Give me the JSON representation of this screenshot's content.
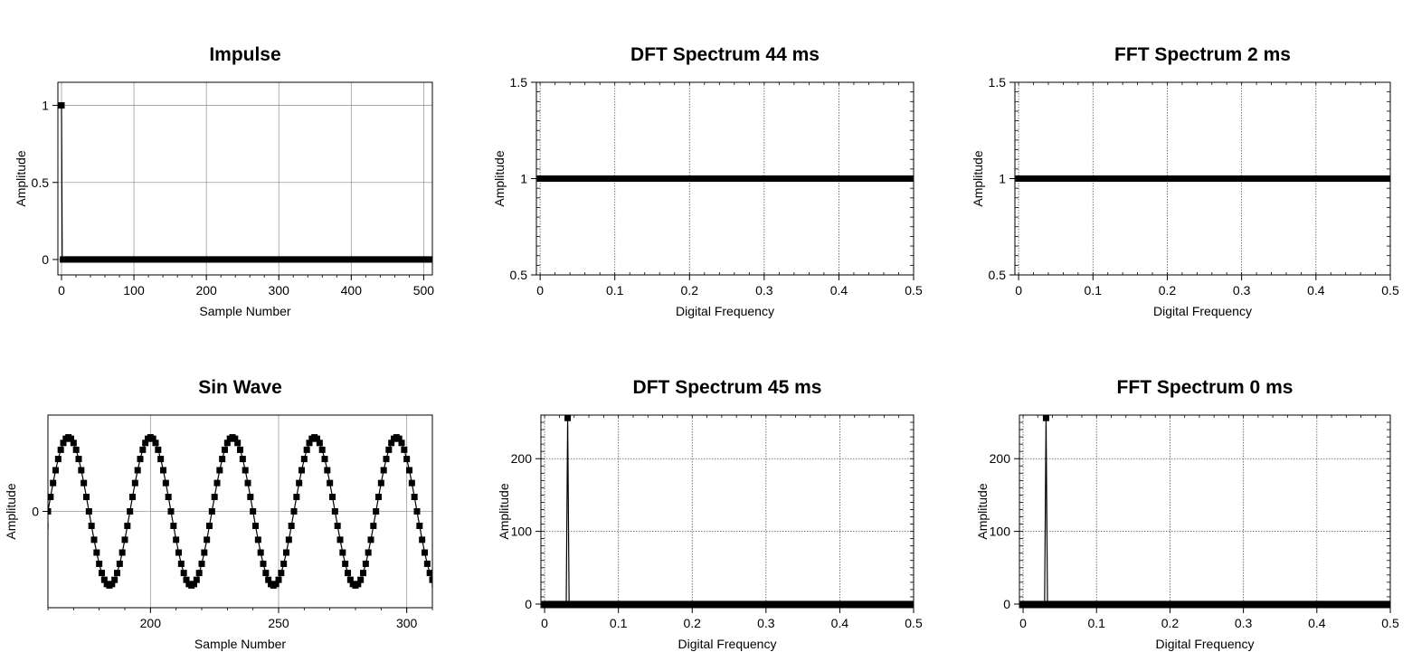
{
  "chart_data": [
    {
      "type": "scatter",
      "title": "Impulse",
      "xlabel": "Sample Number",
      "ylabel": "Amplitude",
      "xlim": [
        -5,
        512
      ],
      "ylim": [
        -0.1,
        1.15
      ],
      "xticks": [
        0,
        100,
        200,
        300,
        400,
        500
      ],
      "yticks": [
        0,
        0.5,
        1
      ],
      "xtick_labels": [
        "0",
        "100",
        "200",
        "300",
        "400",
        "500"
      ],
      "ytick_labels": [
        "0",
        "0.5",
        "1"
      ],
      "grid": "solid",
      "series": [
        {
          "kind": "impulse",
          "n": 512,
          "marker_step": 2
        }
      ]
    },
    {
      "type": "line",
      "title": "DFT Spectrum 44 ms",
      "xlabel": "Digital Frequency",
      "ylabel": "Amplitude",
      "xlim": [
        -0.005,
        0.5
      ],
      "ylim": [
        0.5,
        1.5
      ],
      "xticks": [
        0,
        0.1,
        0.2,
        0.3,
        0.4,
        0.5
      ],
      "yticks": [
        0.5,
        1,
        1.5
      ],
      "xtick_labels": [
        "0",
        "0.1",
        "0.2",
        "0.3",
        "0.4",
        "0.5"
      ],
      "ytick_labels": [
        "0.5",
        "1",
        "1.5"
      ],
      "grid": "dotted",
      "series": [
        {
          "kind": "constant",
          "value": 1,
          "n": 257
        }
      ]
    },
    {
      "type": "line",
      "title": "FFT Spectrum 2 ms",
      "xlabel": "Digital Frequency",
      "ylabel": "Amplitude",
      "xlim": [
        -0.005,
        0.5
      ],
      "ylim": [
        0.5,
        1.5
      ],
      "xticks": [
        0,
        0.1,
        0.2,
        0.3,
        0.4,
        0.5
      ],
      "yticks": [
        0.5,
        1,
        1.5
      ],
      "xtick_labels": [
        "0",
        "0.1",
        "0.2",
        "0.3",
        "0.4",
        "0.5"
      ],
      "ytick_labels": [
        "0.5",
        "1",
        "1.5"
      ],
      "grid": "dotted",
      "series": [
        {
          "kind": "constant",
          "value": 1,
          "n": 257
        }
      ]
    },
    {
      "type": "line",
      "title": "Sin Wave",
      "xlabel": "Sample Number",
      "ylabel": "Amplitude",
      "xlim": [
        160,
        310
      ],
      "ylim": [
        -1.3,
        1.3
      ],
      "xticks": [
        200,
        250,
        300
      ],
      "yticks": [
        0
      ],
      "xtick_labels": [
        "200",
        "250",
        "300"
      ],
      "ytick_labels": [
        "0"
      ],
      "grid": "solid",
      "series": [
        {
          "kind": "sine",
          "amplitude": 1,
          "period": 32,
          "phase_peak_at": 168,
          "n": 512
        }
      ]
    },
    {
      "type": "line",
      "title": "DFT Spectrum 45 ms",
      "xlabel": "Digital Frequency",
      "ylabel": "Amplitude",
      "xlim": [
        -0.005,
        0.5
      ],
      "ylim": [
        -5,
        260
      ],
      "xticks": [
        0,
        0.1,
        0.2,
        0.3,
        0.4,
        0.5
      ],
      "yticks": [
        0,
        100,
        200
      ],
      "xtick_labels": [
        "0",
        "0.1",
        "0.2",
        "0.3",
        "0.4",
        "0.5"
      ],
      "ytick_labels": [
        "0",
        "100",
        "200"
      ],
      "grid": "dotted",
      "series": [
        {
          "kind": "spike",
          "peak_x": 0.03125,
          "peak_value": 256,
          "n": 257
        }
      ]
    },
    {
      "type": "line",
      "title": "FFT Spectrum 0 ms",
      "xlabel": "Digital Frequency",
      "ylabel": "Amplitude",
      "xlim": [
        -0.005,
        0.5
      ],
      "ylim": [
        -5,
        260
      ],
      "xticks": [
        0,
        0.1,
        0.2,
        0.3,
        0.4,
        0.5
      ],
      "yticks": [
        0,
        100,
        200
      ],
      "xtick_labels": [
        "0",
        "0.1",
        "0.2",
        "0.3",
        "0.4",
        "0.5"
      ],
      "ytick_labels": [
        "0",
        "100",
        "200"
      ],
      "grid": "dotted",
      "series": [
        {
          "kind": "spike",
          "peak_x": 0.03125,
          "peak_value": 256,
          "n": 257
        }
      ]
    }
  ]
}
